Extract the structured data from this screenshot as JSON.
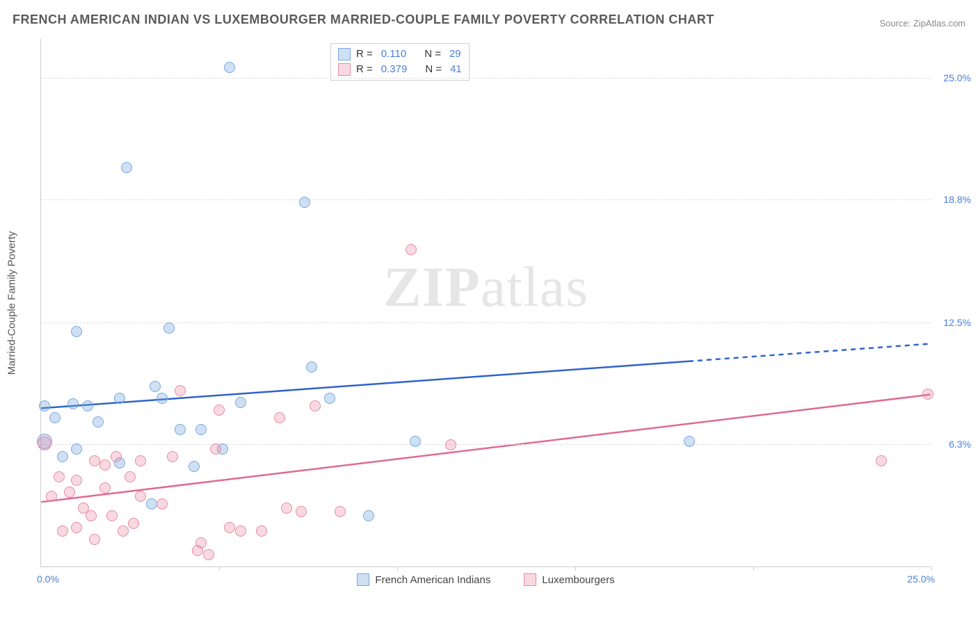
{
  "title": "FRENCH AMERICAN INDIAN VS LUXEMBOURGER MARRIED-COUPLE FAMILY POVERTY CORRELATION CHART",
  "source": "Source: ZipAtlas.com",
  "watermark_bold": "ZIP",
  "watermark_rest": "atlas",
  "y_axis_title": "Married-Couple Family Poverty",
  "chart": {
    "type": "scatter",
    "background_color": "#ffffff",
    "grid_color": "#dddddd",
    "axis_color": "#cccccc",
    "tick_label_color": "#4a7fd8",
    "xlim": [
      0,
      25
    ],
    "ylim": [
      0,
      27
    ],
    "ytick_values": [
      6.3,
      12.5,
      18.8,
      25.0
    ],
    "ytick_labels": [
      "6.3%",
      "12.5%",
      "18.8%",
      "25.0%"
    ],
    "xtick_values": [
      5,
      10,
      15,
      20,
      25
    ],
    "x_origin_label": "0.0%",
    "x_max_label": "25.0%",
    "point_radius": 8
  },
  "series": [
    {
      "name": "French American Indians",
      "color_fill": "rgba(118,167,224,0.35)",
      "color_stroke": "#76a7e0",
      "trend_color": "#2f63c9",
      "r_value": "0.110",
      "n_value": "29",
      "trendline": {
        "x1": 0,
        "y1": 8.1,
        "x2": 25,
        "y2": 11.4,
        "solid_until_x": 18.2
      },
      "points": [
        {
          "x": 0.1,
          "y": 8.2
        },
        {
          "x": 0.1,
          "y": 6.4,
          "r": 11
        },
        {
          "x": 0.4,
          "y": 7.6
        },
        {
          "x": 0.6,
          "y": 5.6
        },
        {
          "x": 0.9,
          "y": 8.3
        },
        {
          "x": 1.0,
          "y": 12.0
        },
        {
          "x": 1.0,
          "y": 6.0
        },
        {
          "x": 1.3,
          "y": 8.2
        },
        {
          "x": 1.6,
          "y": 7.4
        },
        {
          "x": 2.2,
          "y": 8.6
        },
        {
          "x": 2.2,
          "y": 5.3
        },
        {
          "x": 2.4,
          "y": 20.4
        },
        {
          "x": 3.2,
          "y": 9.2
        },
        {
          "x": 3.1,
          "y": 3.2
        },
        {
          "x": 3.4,
          "y": 8.6
        },
        {
          "x": 3.6,
          "y": 12.2
        },
        {
          "x": 3.9,
          "y": 7.0
        },
        {
          "x": 4.3,
          "y": 5.1
        },
        {
          "x": 4.5,
          "y": 7.0
        },
        {
          "x": 5.1,
          "y": 6.0
        },
        {
          "x": 5.3,
          "y": 25.5
        },
        {
          "x": 5.6,
          "y": 8.4
        },
        {
          "x": 7.4,
          "y": 18.6
        },
        {
          "x": 7.6,
          "y": 10.2
        },
        {
          "x": 8.1,
          "y": 8.6
        },
        {
          "x": 9.2,
          "y": 2.6
        },
        {
          "x": 10.5,
          "y": 6.4
        },
        {
          "x": 18.2,
          "y": 6.4
        }
      ]
    },
    {
      "name": "Luxembourgers",
      "color_fill": "rgba(232,130,160,0.30)",
      "color_stroke": "#e88aa4",
      "trend_color": "#e06a8f",
      "r_value": "0.379",
      "n_value": "41",
      "trendline": {
        "x1": 0,
        "y1": 3.3,
        "x2": 25,
        "y2": 8.8,
        "solid_until_x": 25
      },
      "points": [
        {
          "x": 0.1,
          "y": 6.3,
          "r": 10
        },
        {
          "x": 0.3,
          "y": 3.6
        },
        {
          "x": 0.5,
          "y": 4.6
        },
        {
          "x": 0.6,
          "y": 1.8
        },
        {
          "x": 0.8,
          "y": 3.8
        },
        {
          "x": 1.0,
          "y": 4.4
        },
        {
          "x": 1.0,
          "y": 2.0
        },
        {
          "x": 1.2,
          "y": 3.0
        },
        {
          "x": 1.4,
          "y": 2.6
        },
        {
          "x": 1.5,
          "y": 5.4
        },
        {
          "x": 1.5,
          "y": 1.4
        },
        {
          "x": 1.8,
          "y": 5.2
        },
        {
          "x": 1.8,
          "y": 4.0
        },
        {
          "x": 2.0,
          "y": 2.6
        },
        {
          "x": 2.1,
          "y": 5.6
        },
        {
          "x": 2.3,
          "y": 1.8
        },
        {
          "x": 2.5,
          "y": 4.6
        },
        {
          "x": 2.6,
          "y": 2.2
        },
        {
          "x": 2.8,
          "y": 3.6
        },
        {
          "x": 2.8,
          "y": 5.4
        },
        {
          "x": 3.4,
          "y": 3.2
        },
        {
          "x": 3.7,
          "y": 5.6
        },
        {
          "x": 3.9,
          "y": 9.0
        },
        {
          "x": 4.4,
          "y": 0.8
        },
        {
          "x": 4.5,
          "y": 1.2
        },
        {
          "x": 4.7,
          "y": 0.6
        },
        {
          "x": 4.9,
          "y": 6.0
        },
        {
          "x": 5.0,
          "y": 8.0
        },
        {
          "x": 5.3,
          "y": 2.0
        },
        {
          "x": 5.6,
          "y": 1.8
        },
        {
          "x": 6.2,
          "y": 1.8
        },
        {
          "x": 6.7,
          "y": 7.6
        },
        {
          "x": 6.9,
          "y": 3.0
        },
        {
          "x": 7.3,
          "y": 2.8
        },
        {
          "x": 7.7,
          "y": 8.2
        },
        {
          "x": 8.4,
          "y": 2.8
        },
        {
          "x": 10.4,
          "y": 16.2
        },
        {
          "x": 11.5,
          "y": 6.2
        },
        {
          "x": 23.6,
          "y": 5.4
        },
        {
          "x": 24.9,
          "y": 8.8
        }
      ]
    }
  ],
  "legend_top": {
    "r_label": "R  =",
    "n_label": "N  ="
  },
  "legend_bottom_items": [
    0,
    1
  ]
}
